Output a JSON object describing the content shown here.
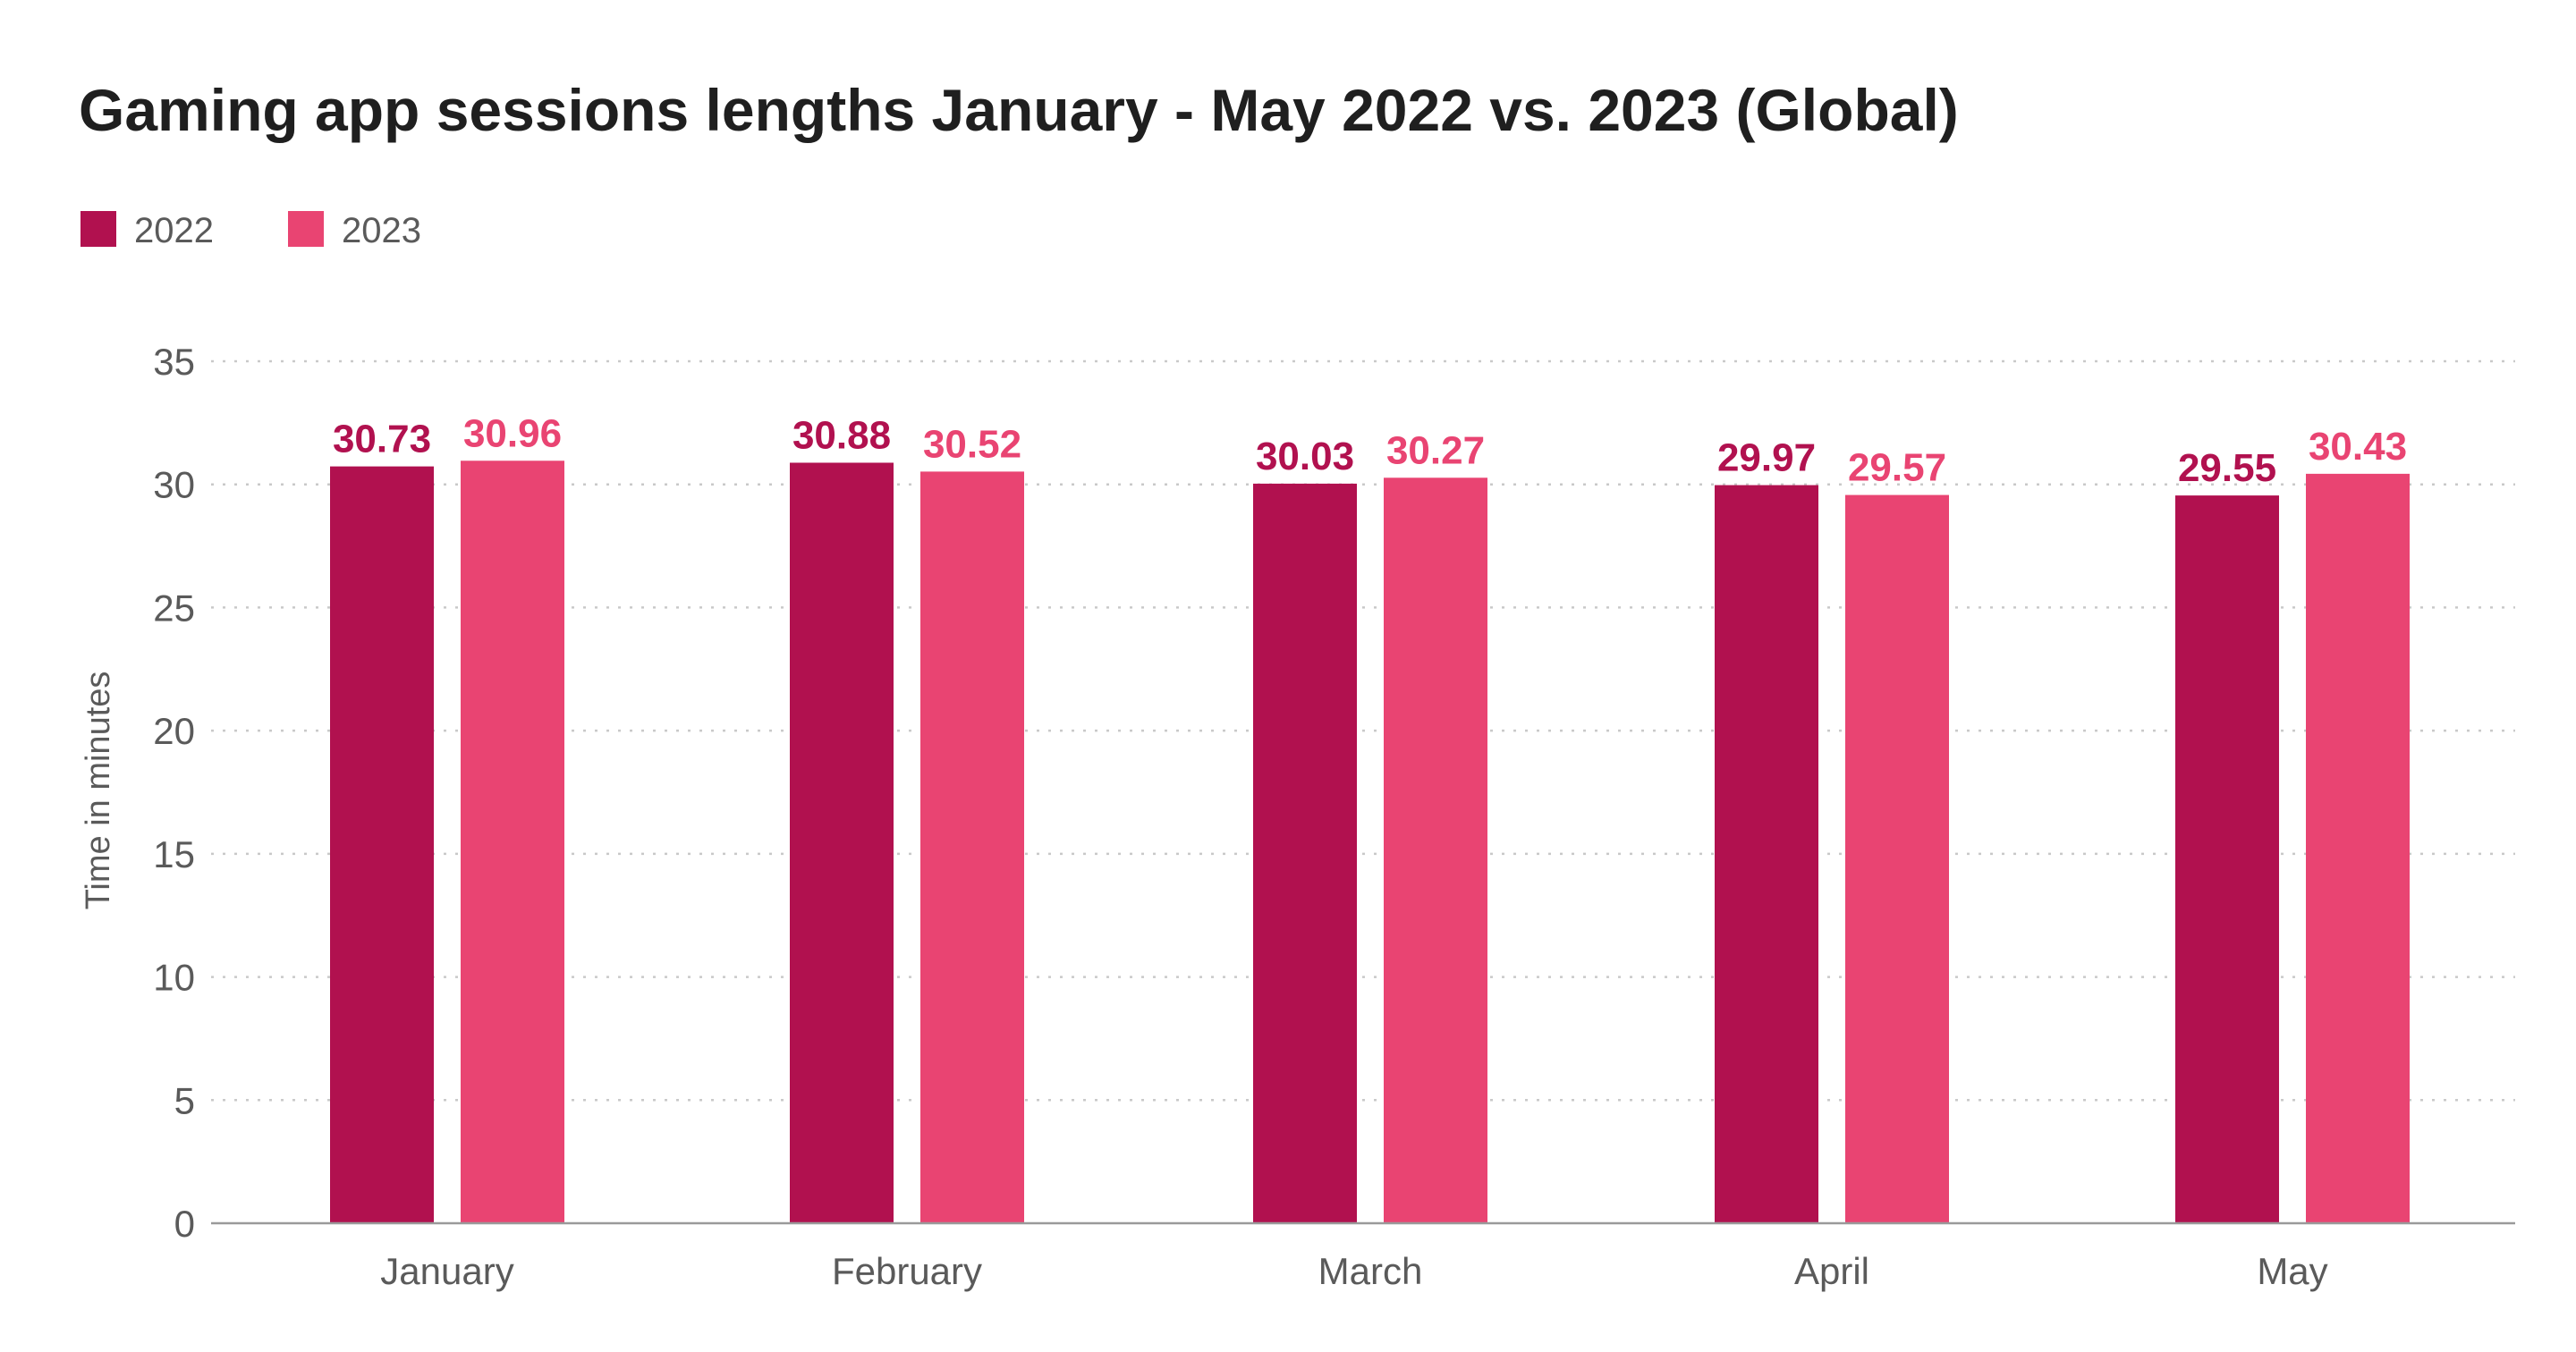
{
  "chart_data": {
    "type": "bar",
    "title": "Gaming app sessions lengths January - May 2022 vs. 2023 (Global)",
    "xlabel": "",
    "ylabel": "Time in minutes",
    "categories": [
      "January",
      "February",
      "March",
      "April",
      "May"
    ],
    "series": [
      {
        "name": "2022",
        "color": "#b1114f",
        "values": [
          30.73,
          30.88,
          30.03,
          29.97,
          29.55
        ]
      },
      {
        "name": "2023",
        "color": "#e94472",
        "values": [
          30.96,
          30.52,
          30.27,
          29.57,
          30.43
        ]
      }
    ],
    "value_labels": [
      [
        "30.73",
        "30.88",
        "30.03",
        "29.97",
        "29.55"
      ],
      [
        "30.96",
        "30.52",
        "30.27",
        "29.57",
        "30.43"
      ]
    ],
    "ylim": [
      0,
      35
    ],
    "yticks": [
      "0",
      "5",
      "10",
      "15",
      "20",
      "25",
      "30",
      "35"
    ],
    "grid": true,
    "legend_position": "top-left"
  }
}
